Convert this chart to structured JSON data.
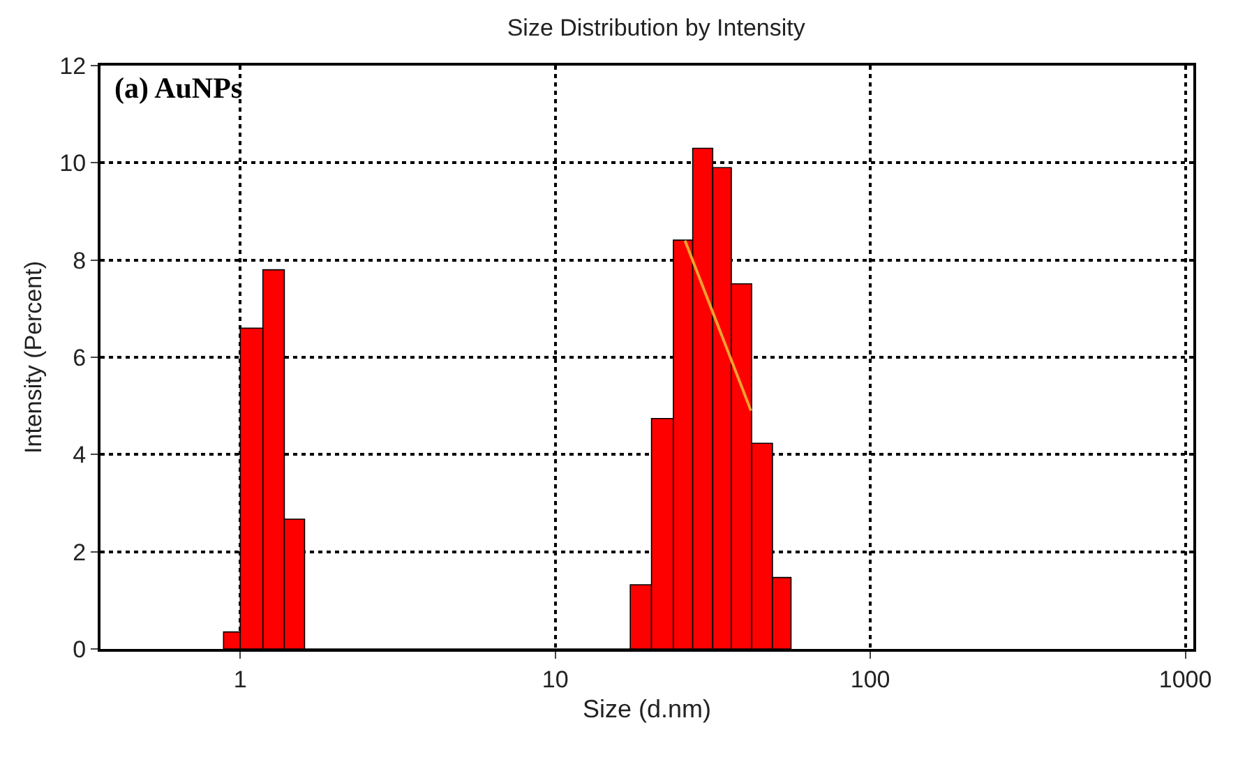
{
  "chart_data": {
    "type": "histogram",
    "title": "Size Distribution by Intensity",
    "xlabel": "Size (d.nm)",
    "ylabel": "Intensity (Percent)",
    "annotations": [
      "(a) AuNPs"
    ],
    "bins": [
      0.885,
      1.0,
      1.18,
      1.38,
      1.6,
      17.3,
      20.2,
      23.7,
      27.3,
      31.6,
      36.2,
      42,
      48.9,
      56
    ],
    "series": [
      {
        "color": "#ff0000",
        "values": [
          0.35,
          6.6,
          7.8,
          2.67,
          0,
          1.32,
          4.74,
          8.41,
          10.3,
          9.9,
          7.51,
          4.23,
          1.47
        ]
      },
      {
        "type": "line",
        "color": "#f0a030",
        "x": [
          25.8,
          41.8
        ],
        "values": [
          8.4,
          4.9
        ]
      }
    ],
    "log": "x",
    "xlim": [
      0.36,
      1060
    ],
    "xticks": [
      1,
      10,
      100,
      1000
    ],
    "ylim": [
      0,
      12
    ],
    "yticks": [
      0,
      2,
      4,
      6,
      8,
      10,
      12
    ],
    "grid": true
  }
}
